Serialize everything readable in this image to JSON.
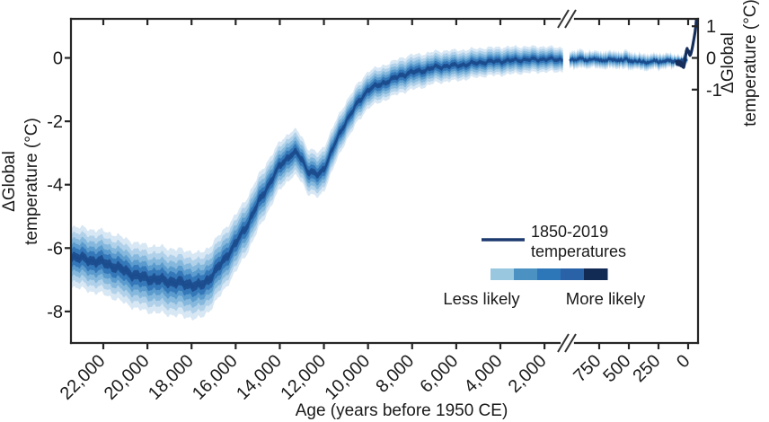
{
  "chart_data": {
    "type": "area",
    "title": "",
    "xlabel": "Age (years before 1950 CE)",
    "ylabel_line1": "ΔGlobal",
    "ylabel_line2": "temperature (°C)",
    "legend": {
      "series_label_line1": "1850-2019",
      "series_label_line2": "temperatures",
      "less_label": "Less likely",
      "more_label": "More likely"
    },
    "x_ticks_main": {
      "ages_bp": [
        22000,
        20000,
        18000,
        16000,
        14000,
        12000,
        10000,
        8000,
        6000,
        4000,
        2000
      ],
      "labels": [
        "22,000",
        "20,000",
        "18,000",
        "16,000",
        "14,000",
        "12,000",
        "10,000",
        "8,000",
        "6,000",
        "4,000",
        "2,000"
      ]
    },
    "x_ticks_recent": {
      "ages_bp": [
        750,
        500,
        250,
        0
      ],
      "labels": [
        "750",
        "500",
        "250",
        "0"
      ]
    },
    "y_ticks_left": {
      "values": [
        0,
        -2,
        -4,
        -6,
        -8
      ],
      "labels": [
        "0",
        "-2",
        "-4",
        "-6",
        "-8"
      ]
    },
    "y_ticks_right": {
      "values": [
        1,
        0,
        -1
      ],
      "labels": [
        "1",
        "0",
        "-1"
      ]
    },
    "axis_break": {
      "years_bp": 1000,
      "glyph": "//"
    },
    "ylim": [
      -8.99,
      1.23
    ],
    "xlim_main_years_bp": [
      23466,
      1149
    ],
    "xlim_recent_years_bp": [
      1000,
      -69
    ],
    "median_delta_T": [
      [
        23466,
        -6.25
      ],
      [
        23000,
        -6.32
      ],
      [
        22500,
        -6.4
      ],
      [
        22000,
        -6.45
      ],
      [
        21500,
        -6.58
      ],
      [
        21000,
        -6.72
      ],
      [
        20500,
        -6.88
      ],
      [
        20000,
        -6.95
      ],
      [
        19500,
        -7.0
      ],
      [
        19000,
        -7.05
      ],
      [
        18500,
        -7.1
      ],
      [
        18000,
        -7.15
      ],
      [
        17750,
        -7.2
      ],
      [
        17500,
        -7.15
      ],
      [
        17250,
        -7.0
      ],
      [
        17000,
        -6.8
      ],
      [
        16500,
        -6.35
      ],
      [
        16000,
        -5.85
      ],
      [
        15500,
        -5.3
      ],
      [
        15000,
        -4.6
      ],
      [
        14500,
        -4.0
      ],
      [
        14000,
        -3.4
      ],
      [
        13500,
        -3.05
      ],
      [
        13250,
        -3.0
      ],
      [
        13000,
        -3.2
      ],
      [
        12750,
        -3.55
      ],
      [
        12250,
        -3.7
      ],
      [
        12000,
        -3.5
      ],
      [
        11500,
        -2.7
      ],
      [
        11000,
        -2.0
      ],
      [
        10500,
        -1.45
      ],
      [
        10000,
        -1.0
      ],
      [
        9500,
        -0.85
      ],
      [
        9000,
        -0.7
      ],
      [
        8500,
        -0.55
      ],
      [
        8000,
        -0.45
      ],
      [
        7500,
        -0.4
      ],
      [
        7000,
        -0.3
      ],
      [
        6500,
        -0.26
      ],
      [
        6000,
        -0.24
      ],
      [
        5500,
        -0.2
      ],
      [
        5000,
        -0.15
      ],
      [
        4500,
        -0.12
      ],
      [
        4000,
        -0.1
      ],
      [
        3500,
        -0.08
      ],
      [
        3000,
        -0.06
      ],
      [
        2500,
        -0.05
      ],
      [
        2000,
        -0.04
      ],
      [
        1500,
        -0.05
      ],
      [
        1149,
        -0.05
      ]
    ],
    "uncertainty_halfwidth": [
      [
        23466,
        0.95
      ],
      [
        22000,
        1.0
      ],
      [
        20000,
        1.05
      ],
      [
        18000,
        1.05
      ],
      [
        17000,
        1.0
      ],
      [
        16000,
        0.9
      ],
      [
        15000,
        0.85
      ],
      [
        14000,
        0.75
      ],
      [
        13000,
        0.72
      ],
      [
        12000,
        0.7
      ],
      [
        11000,
        0.62
      ],
      [
        10000,
        0.58
      ],
      [
        9000,
        0.55
      ],
      [
        8000,
        0.55
      ],
      [
        7000,
        0.5
      ],
      [
        6000,
        0.48
      ],
      [
        5000,
        0.45
      ],
      [
        4000,
        0.44
      ],
      [
        3000,
        0.42
      ],
      [
        2000,
        0.4
      ],
      [
        1149,
        0.38
      ]
    ],
    "recent_median_delta_T": [
      [
        1000,
        -0.04
      ],
      [
        900,
        -0.06
      ],
      [
        800,
        -0.04
      ],
      [
        700,
        -0.07
      ],
      [
        600,
        -0.05
      ],
      [
        500,
        -0.08
      ],
      [
        400,
        -0.1
      ],
      [
        300,
        -0.12
      ],
      [
        200,
        -0.1
      ],
      [
        150,
        -0.12
      ],
      [
        100,
        -0.1
      ],
      [
        50,
        -0.08
      ],
      [
        0,
        -0.05
      ]
    ],
    "recent_uncertainty_halfwidth": [
      [
        1000,
        0.27
      ],
      [
        800,
        0.26
      ],
      [
        600,
        0.26
      ],
      [
        400,
        0.25
      ],
      [
        200,
        0.23
      ],
      [
        100,
        0.19
      ],
      [
        50,
        0.16
      ],
      [
        0,
        0.13
      ]
    ],
    "instrumental_1850_2019": [
      [
        1850,
        -0.12
      ],
      [
        1857,
        -0.2
      ],
      [
        1865,
        -0.1
      ],
      [
        1872,
        -0.22
      ],
      [
        1880,
        -0.12
      ],
      [
        1888,
        -0.25
      ],
      [
        1896,
        -0.15
      ],
      [
        1904,
        -0.28
      ],
      [
        1912,
        -0.3
      ],
      [
        1920,
        -0.18
      ],
      [
        1928,
        0.05
      ],
      [
        1935,
        0.22
      ],
      [
        1942,
        0.3
      ],
      [
        1948,
        0.18
      ],
      [
        1954,
        0.22
      ],
      [
        1960,
        0.12
      ],
      [
        1966,
        0.08
      ],
      [
        1972,
        0.12
      ],
      [
        1978,
        0.2
      ],
      [
        1984,
        0.3
      ],
      [
        1990,
        0.42
      ],
      [
        1996,
        0.55
      ],
      [
        2002,
        0.68
      ],
      [
        2008,
        0.82
      ],
      [
        2013,
        0.95
      ],
      [
        2016,
        1.05
      ],
      [
        2019,
        1.18
      ]
    ],
    "band_fractions": [
      1.0,
      0.8,
      0.62,
      0.45,
      0.3,
      0.14
    ],
    "band_colors": [
      "#d8e7f4",
      "#b0d1e9",
      "#85b8dc",
      "#5b9bcd",
      "#3478b9",
      "#1d4f91"
    ],
    "colorbar_colors": [
      "#99c7e0",
      "#4b91c2",
      "#2d76b7",
      "#2a62a8",
      "#122b55"
    ],
    "colors": {
      "axis": "#262626",
      "text": "#1a1a1a",
      "median_line": "#1b4c8d",
      "instrumental_line": "#152e5c",
      "legend_swatch": "#1c3a6e"
    },
    "noise": {
      "main_jitter": 0.015,
      "recent_median_jitter": 0.1,
      "recent_width_jitter": 0.08
    },
    "legend_position": "inside-right",
    "grid": false
  }
}
